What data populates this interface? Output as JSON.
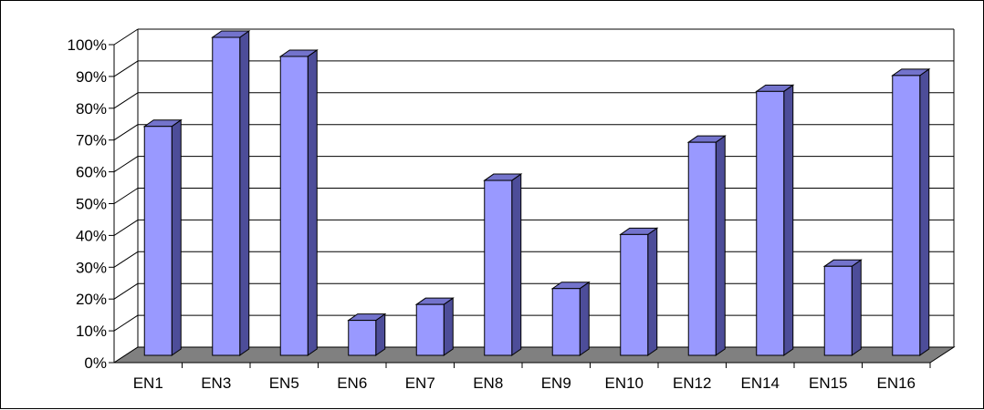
{
  "chart_data": {
    "type": "bar",
    "title": "",
    "xlabel": "",
    "ylabel": "",
    "categories": [
      "EN1",
      "EN3",
      "EN5",
      "EN6",
      "EN7",
      "EN8",
      "EN9",
      "EN10",
      "EN12",
      "EN14",
      "EN15",
      "EN16"
    ],
    "values": [
      72,
      100,
      94,
      11,
      16,
      55,
      21,
      38,
      67,
      83,
      28,
      88
    ],
    "unit": "%",
    "ylim": [
      0,
      100
    ],
    "yticks": [
      "0%",
      "10%",
      "20%",
      "30%",
      "40%",
      "50%",
      "60%",
      "70%",
      "80%",
      "90%",
      "100%"
    ],
    "grid": true,
    "legend": "none",
    "style": "3d-column",
    "colors": {
      "bar_front": "#9999ff",
      "bar_side": "#4d4d99",
      "bar_top": "#7373cc",
      "floor": "#808080",
      "grid": "#000000"
    }
  }
}
